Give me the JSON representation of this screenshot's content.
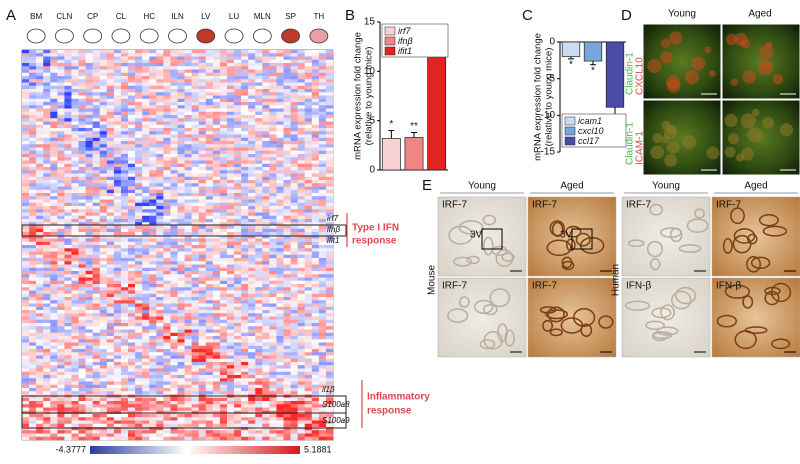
{
  "panel_a": {
    "label": "A",
    "tissues": [
      "BM",
      "CLN",
      "CP",
      "CL",
      "HC",
      "ILN",
      "LV",
      "LU",
      "MLN",
      "SP",
      "TH"
    ],
    "ifn_genes": [
      "irf7",
      "ifnβ",
      "ifit1"
    ],
    "ifn_group": [
      "Type I IFN",
      "response"
    ],
    "inflammatory_genes": [
      "il1β",
      "S100a8",
      "S100a9"
    ],
    "inflammatory_group": [
      "Inflammatory",
      "response"
    ],
    "colorbar": {
      "min": -4.3777,
      "max": 5.1881
    }
  },
  "chart_data": [
    {
      "type": "bar",
      "label": "B",
      "ylabel": [
        "mRNA expression fold change",
        "(relative to young mice)"
      ],
      "series": [
        {
          "name": "irf7",
          "color": "#f8d2d2",
          "values": [
            3.2
          ],
          "errors": [
            0.8
          ],
          "annotation": "*"
        },
        {
          "name": "ifnβ",
          "color": "#ef8585",
          "values": [
            3.3
          ],
          "errors": [
            0.5
          ],
          "annotation": "**"
        },
        {
          "name": "ifit1",
          "color": "#e2231f",
          "values": [
            12.7
          ],
          "errors": [
            0.9
          ],
          "annotation": "***"
        }
      ],
      "ylim": [
        0,
        15
      ],
      "yticks": [
        0,
        5,
        10,
        15
      ],
      "legend": "top"
    },
    {
      "type": "bar",
      "label": "C",
      "ylabel": [
        "mRNA expression fold change",
        "(relative to young mice)"
      ],
      "series": [
        {
          "name": "icam1",
          "color": "#c9ddf2",
          "values": [
            -2.0
          ],
          "errors": [
            0.3
          ],
          "annotation": "*"
        },
        {
          "name": "cxcl10",
          "color": "#79a6da",
          "values": [
            -2.6
          ],
          "errors": [
            0.5
          ],
          "annotation": "*"
        },
        {
          "name": "ccl17",
          "color": "#4b4ca6",
          "values": [
            -8.9
          ],
          "errors": [
            3.6
          ],
          "annotation": "**"
        }
      ],
      "ylim": [
        -15,
        0
      ],
      "yticks": [
        -15,
        -10,
        -5,
        0
      ],
      "legend": "bottom"
    }
  ],
  "panel_d": {
    "label": "D",
    "columns": [
      "Young",
      "Aged"
    ],
    "rows": [
      [
        "Claudin-1",
        "CXCL10"
      ],
      [
        "Claudin-1",
        "ICAM-1"
      ]
    ]
  },
  "panel_e": {
    "label": "E",
    "mouse": {
      "side": "Mouse",
      "columns": [
        "Young",
        "Aged"
      ],
      "images": [
        [
          "IRF-7",
          "IRF-7"
        ],
        [
          "IRF-7",
          "IRF-7"
        ]
      ],
      "region": "3V"
    },
    "human": {
      "side": "Human",
      "columns": [
        "Young",
        "Aged"
      ],
      "images": [
        [
          "IRF-7",
          "IRF-7"
        ],
        [
          "IFN-β",
          "IFN-β"
        ]
      ]
    }
  }
}
